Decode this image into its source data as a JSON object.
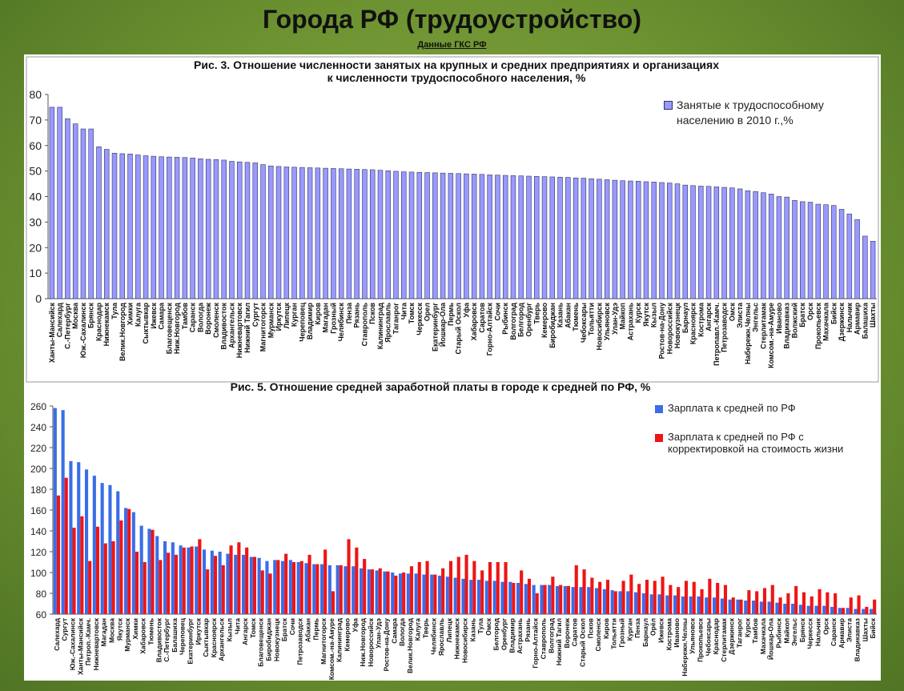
{
  "header": {
    "title": "Города РФ (трудоустройство)",
    "subtitle": "Данные ГКС РФ"
  },
  "chart_data": [
    {
      "type": "bar",
      "title": [
        "Рис. 3. Отношение численности занятых на крупных и средних предприятиях и организациях",
        "к численности трудоспособного населения, %"
      ],
      "categories": [
        "Ханты-Мансийск",
        "Салехард",
        "С.-Петербург",
        "Москва",
        "Юж.-Сахалинск",
        "Брянск",
        "Краснодар",
        "Нижнекамск",
        "Тула",
        "Велик.Новгород",
        "Химки",
        "Калуга",
        "Сыктывкар",
        "Ижевск",
        "Самара",
        "Благовещенск",
        "Ниж.Новгород",
        "Тамбов",
        "Саранск",
        "Вологда",
        "Воронеж",
        "Смоленск",
        "Владивосток",
        "Архангельск",
        "Нижневартовск",
        "Нижний Тагил",
        "Сургут",
        "Магнитогорск",
        "Мурманск",
        "Иркутск",
        "Липецк",
        "Курган",
        "Череповец",
        "Владимир",
        "Киров",
        "Магадан",
        "Грозный",
        "Челябинск",
        "Пенза",
        "Рязань",
        "Ставрополь",
        "Псков",
        "Калининград",
        "Ярославль",
        "Таганрог",
        "Чита",
        "Томск",
        "Черкесск",
        "Орел",
        "Екатеринбург",
        "Йошкар-Ола",
        "Пермь",
        "Старый Оскол",
        "Уфа",
        "Хабаровск",
        "Саратов",
        "Горно-Алтайск",
        "Сочи",
        "Рыбинск",
        "Волгоград",
        "Белгород",
        "Оренбург",
        "Тверь",
        "Кемерово",
        "Биробиджан",
        "Казань",
        "Абакан",
        "Тюмень",
        "Чебоксары",
        "Тольятти",
        "Новосибирск",
        "Ульяновск",
        "Улан-Удэ",
        "Майкоп",
        "Астрахань",
        "Курск",
        "Якутск",
        "Кызыл",
        "Ростов-на-Дону",
        "Новороссийск",
        "Новокузнецк",
        "Барнаул",
        "Красноярск",
        "Кострома",
        "Ангарск",
        "Петропавл.-Камч.",
        "Петрозаводск",
        "Омск",
        "Элиста",
        "Набережн.Челны",
        "Энгельс",
        "Стерлитамак",
        "Комсом.-на-Амуре",
        "Иваново",
        "Владикавказ",
        "Волжский",
        "Братск",
        "Орск",
        "Прокопьевск",
        "Махачкала",
        "Бийск",
        "Дзержинск",
        "Нальчик",
        "Армавир",
        "Балашиха",
        "Шахты"
      ],
      "series": [
        {
          "name": "Занятые к трудоспособному населению в 2010 г.,%",
          "color": "#9999ff",
          "values": [
            75,
            75,
            70.5,
            68.5,
            66.5,
            66.5,
            59.5,
            58.5,
            57,
            56.8,
            56.7,
            56.3,
            56,
            55.8,
            55.6,
            55.5,
            55.4,
            55.3,
            55.1,
            54.8,
            54.6,
            54.5,
            54.3,
            53.8,
            53.6,
            53.4,
            53.2,
            52.5,
            52,
            51.8,
            51.6,
            51.5,
            51.4,
            51.3,
            51.2,
            51.1,
            51,
            50.9,
            50.8,
            50.7,
            50.6,
            50.5,
            50.3,
            50.1,
            49.9,
            49.7,
            49.6,
            49.5,
            49.4,
            49.3,
            49.2,
            49.1,
            49,
            48.9,
            48.8,
            48.7,
            48.5,
            48.4,
            48.3,
            48.2,
            48.1,
            48,
            47.9,
            47.8,
            47.7,
            47.6,
            47.5,
            47.3,
            47.2,
            47,
            46.8,
            46.6,
            46.4,
            46.2,
            46.1,
            46,
            45.8,
            45.7,
            45.5,
            45.3,
            45,
            44.5,
            44.3,
            44.1,
            44,
            43.8,
            43.6,
            43.4,
            43,
            42.3,
            42,
            41.5,
            41,
            40,
            39.8,
            38.5,
            38,
            37.8,
            37,
            36.8,
            36.5,
            35,
            33.2,
            31,
            24.5,
            22.5
          ]
        }
      ],
      "ylim": [
        0,
        80
      ],
      "yticks": [
        0,
        10,
        20,
        30,
        40,
        50,
        60,
        70,
        80
      ],
      "legend": "top-right"
    },
    {
      "type": "bar",
      "title": [
        "Рис. 5. Отношение средней заработной платы в городе к средней по РФ, %"
      ],
      "categories": [
        "Салехард",
        "Сургут",
        "Юж.-Сахалинск",
        "Ханты-Мансийск",
        "Петроп.-Камч.",
        "Нижневартовск",
        "Магадан",
        "Москва",
        "Якутск",
        "Мурманск",
        "Химки",
        "Хабаровск",
        "Тюмень",
        "Владивосток",
        "С.-Петербург",
        "Балашиха",
        "Череповец",
        "Екатеринбург",
        "Иркутск",
        "Сыктывкар",
        "Красноярск",
        "Архангельск",
        "Кызыл",
        "Чита",
        "Ангарск",
        "Томск",
        "Благовещенск",
        "Биробиджан",
        "Новокузнецк",
        "Братск",
        "Сочи",
        "Петрозаводск",
        "Абакан",
        "Пермь",
        "Магнитогорск",
        "Комсом.-на-Амуре",
        "Калининград",
        "Кемерово",
        "Уфа",
        "Ниж.Новгород",
        "Новороссийск",
        "Улан-Удэ",
        "Ростов-на-Дону",
        "Самара",
        "Вологда",
        "Велик.Новгород",
        "Калуга",
        "Тверь",
        "Челябинск",
        "Ярославль",
        "Липецк",
        "Нижнекамск",
        "Новосибирск",
        "Казань",
        "Тула",
        "Омск",
        "Белгород",
        "Оренбург",
        "Владимир",
        "Астрахань",
        "Рязань",
        "Горно-Алтайск",
        "Ставрополь",
        "Волгоград",
        "Нижний Тагил",
        "Воронеж",
        "Саратов",
        "Старый Оскол",
        "Псков",
        "Смоленск",
        "Киров",
        "Тольятти",
        "Грозный",
        "Курган",
        "Пенза",
        "Барнаул",
        "Орёл",
        "Ижевск",
        "Кострома",
        "Иваново",
        "Набережн.Челны",
        "Ульяновск",
        "Прокопьевск",
        "Чебоксары",
        "Краснодар",
        "Стерлитамак",
        "Дзержинск",
        "Таганрог",
        "Курск",
        "Тамбов",
        "Махачкала",
        "Йошкар-Ола",
        "Рыбинск",
        "Майкоп",
        "Энгельс",
        "Брянск",
        "Черкесск",
        "Нальчик",
        "Орск",
        "Саранск",
        "Армавир",
        "Элиста",
        "Владикавказ",
        "Шахты",
        "Бийск"
      ],
      "series": [
        {
          "name": "Зарплата к средней по РФ",
          "color": "#3a6ee8",
          "values": [
            258,
            256,
            207,
            206,
            199,
            193,
            186,
            184,
            178,
            162,
            158,
            145,
            142,
            135,
            130,
            129,
            126,
            124,
            125,
            122,
            121,
            120,
            118,
            117,
            117,
            115,
            114,
            111,
            112,
            111,
            112,
            110,
            109,
            108,
            108,
            107,
            107,
            106,
            106,
            104,
            103,
            102,
            101,
            100,
            99,
            99,
            99,
            98,
            98,
            97,
            96,
            95,
            94,
            93,
            93,
            92,
            92,
            91,
            91,
            90,
            89,
            88,
            88,
            88,
            87,
            87,
            86,
            86,
            86,
            85,
            84,
            83,
            82,
            82,
            81,
            80,
            79,
            79,
            78,
            78,
            77,
            77,
            77,
            76,
            76,
            75,
            74,
            74,
            73,
            73,
            72,
            72,
            71,
            70,
            70,
            69,
            68,
            68,
            68,
            67,
            66,
            66,
            65,
            65,
            65
          ]
        },
        {
          "name": "Зарплата к средней по РФ с корректировкой на стоимость жизни",
          "color": "#ee1515",
          "values": [
            174,
            191,
            143,
            154,
            111,
            144,
            128,
            130,
            150,
            161,
            120,
            110,
            141,
            112,
            119,
            117,
            124,
            125,
            132,
            103,
            116,
            107,
            126,
            129,
            124,
            115,
            102,
            99,
            112,
            118,
            110,
            111,
            117,
            108,
            122,
            82,
            107,
            132,
            124,
            113,
            103,
            104,
            101,
            97,
            100,
            106,
            110,
            111,
            98,
            104,
            111,
            115,
            117,
            111,
            102,
            110,
            110,
            110,
            90,
            102,
            94,
            80,
            88,
            96,
            88,
            87,
            107,
            103,
            95,
            91,
            93,
            82,
            92,
            98,
            89,
            93,
            92,
            96,
            88,
            86,
            92,
            91,
            84,
            94,
            90,
            88,
            76,
            74,
            83,
            82,
            85,
            88,
            76,
            80,
            87,
            81,
            77,
            84,
            81,
            80,
            66,
            76,
            78,
            67,
            74
          ]
        }
      ],
      "ylim": [
        60,
        260
      ],
      "yticks": [
        60,
        80,
        100,
        120,
        140,
        160,
        180,
        200,
        220,
        240,
        260
      ],
      "legend": "top-right"
    }
  ]
}
